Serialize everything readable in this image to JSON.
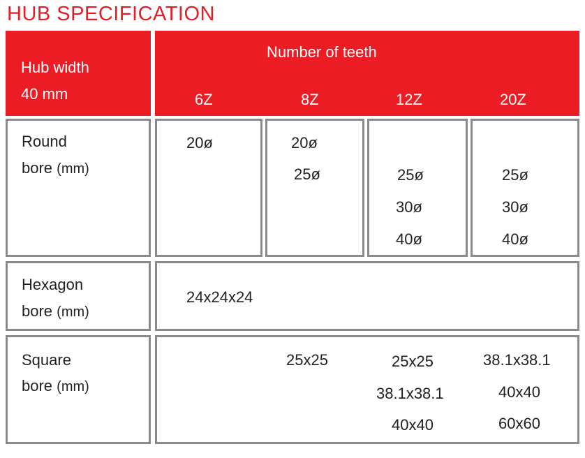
{
  "title": "HUB SPECIFICATION",
  "header": {
    "hub_width_line1": "Hub width",
    "hub_width_line2": "40 mm",
    "teeth_title": "Number of teeth",
    "teeth": [
      "6Z",
      "8Z",
      "12Z",
      "20Z"
    ]
  },
  "round_bore": {
    "label_line1": "Round",
    "label_line2": "bore",
    "unit": "(mm)",
    "6Z": [
      "20ø"
    ],
    "8Z": [
      "20ø",
      "25ø"
    ],
    "12Z": [
      "25ø",
      "30ø",
      "40ø"
    ],
    "20Z": [
      "25ø",
      "30ø",
      "40ø"
    ]
  },
  "hexagon_bore": {
    "label_line1": "Hexagon",
    "label_line2": "bore",
    "unit": "(mm)",
    "value": "24x24x24"
  },
  "square_bore": {
    "label_line1": "Square",
    "label_line2": "bore",
    "unit": "(mm)",
    "8Z": [
      "25x25"
    ],
    "12Z": [
      "25x25",
      "38.1x38.1",
      "40x40"
    ],
    "20Z": [
      "38.1x38.1",
      "40x40",
      "60x60"
    ]
  }
}
